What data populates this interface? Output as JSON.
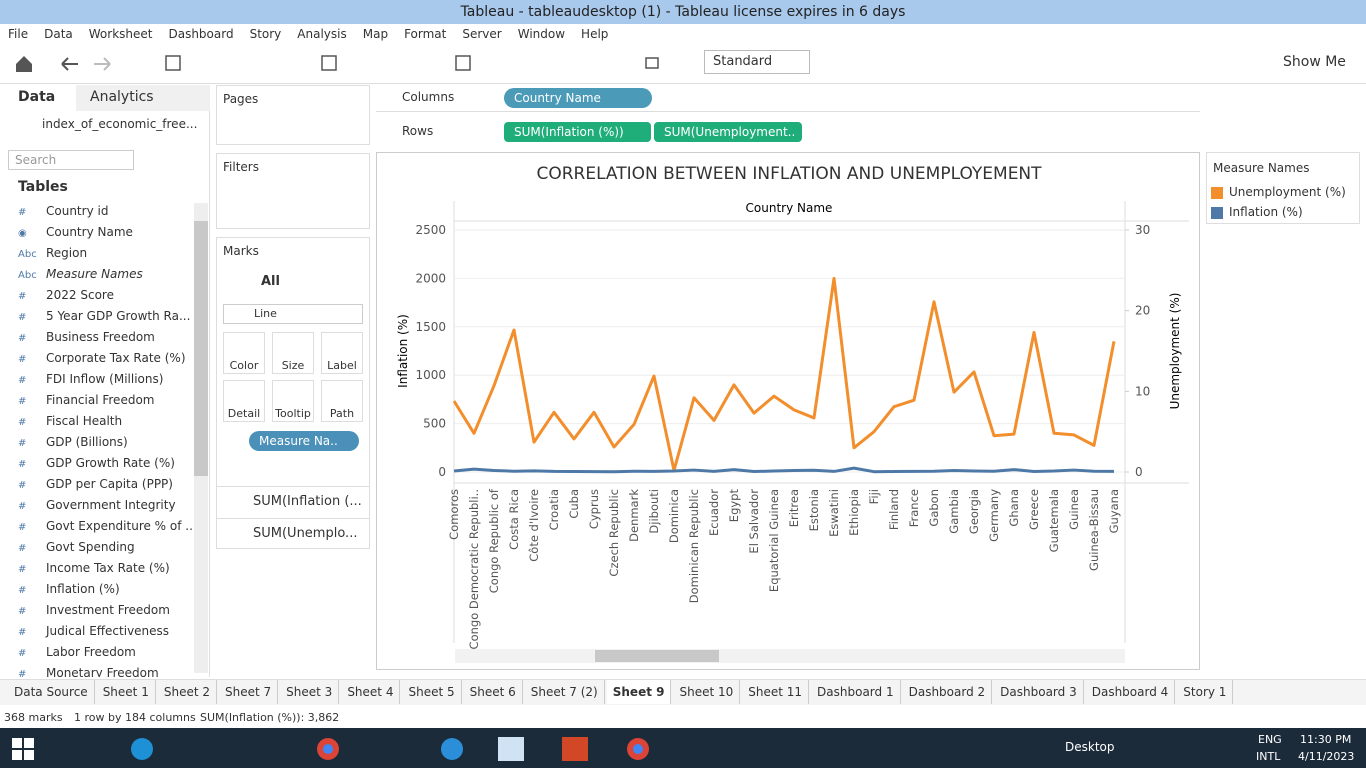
{
  "window_title": "Tableau - tableaudesktop (1) - Tableau license expires in 6 days",
  "menu": [
    "File",
    "Data",
    "Worksheet",
    "Dashboard",
    "Story",
    "Analysis",
    "Map",
    "Format",
    "Server",
    "Window",
    "Help"
  ],
  "toolbar": {
    "mark_type_fit": "Standard",
    "show_me": "Show Me"
  },
  "data_pane": {
    "tabs": [
      "Data",
      "Analytics"
    ],
    "datasource": "index_of_economic_free...",
    "search_placeholder": "Search",
    "tables_heading": "Tables",
    "fields": [
      {
        "icon": "#",
        "name": "Country id"
      },
      {
        "name": "Country Name"
      },
      {
        "icon": "Abc",
        "name": "Region"
      },
      {
        "icon": "Abc",
        "name": "Measure Names"
      },
      {
        "icon": "#",
        "name": "2022 Score"
      },
      {
        "icon": "#",
        "name": "5 Year GDP Growth Ra..."
      },
      {
        "icon": "#",
        "name": "Business Freedom"
      },
      {
        "icon": "#",
        "name": "Corporate Tax Rate (%)"
      },
      {
        "icon": "#",
        "name": "FDI Inflow (Millions)"
      },
      {
        "icon": "#",
        "name": "Financial Freedom"
      },
      {
        "icon": "#",
        "name": "Fiscal Health"
      },
      {
        "icon": "#",
        "name": "GDP (Billions)"
      },
      {
        "icon": "#",
        "name": "GDP Growth Rate (%)"
      },
      {
        "icon": "#",
        "name": "GDP per Capita (PPP)"
      },
      {
        "icon": "#",
        "name": "Government Integrity"
      },
      {
        "icon": "#",
        "name": "Govt Expenditure % of ..."
      },
      {
        "icon": "#",
        "name": "Govt Spending"
      },
      {
        "icon": "#",
        "name": "Income Tax Rate (%)"
      },
      {
        "icon": "#",
        "name": "Inflation (%)"
      },
      {
        "icon": "#",
        "name": "Investment Freedom"
      },
      {
        "icon": "#",
        "name": "Judical Effectiveness"
      },
      {
        "icon": "#",
        "name": "Labor Freedom"
      },
      {
        "icon": "#",
        "name": "Monetary Freedom"
      }
    ]
  },
  "cards": {
    "pages": "Pages",
    "filters": "Filters",
    "marks": "Marks",
    "all": "All",
    "mark_type": "Line",
    "mark_buttons": [
      "Color",
      "Size",
      "Label",
      "Detail",
      "Tooltip",
      "Path"
    ],
    "color_pill": "Measure Na..",
    "measures": [
      "SUM(Inflation (...",
      "SUM(Unemplo..."
    ]
  },
  "shelves": {
    "columns_label": "Columns",
    "columns": [
      "Country Name"
    ],
    "rows_label": "Rows",
    "rows": [
      "SUM(Inflation (%))",
      "SUM(Unemployment.."
    ]
  },
  "chart_data": {
    "type": "line",
    "title": "CORRELATION BETWEEN INFLATION AND UNEMPLOYEMENT",
    "header": "Country Name",
    "y_label": "Inflation (%)",
    "y2_label": "Unemployment (%)",
    "categories": [
      "Comoros",
      "Congo Democratic Republi..",
      "Congo Republic of",
      "Costa Rica",
      "Côte d'Ivoire",
      "Croatia",
      "Cuba",
      "Cyprus",
      "Czech Republic",
      "Denmark",
      "Djibouti",
      "Dominica",
      "Dominican Republic",
      "Ecuador",
      "Egypt",
      "El Salvador",
      "Equatorial Guinea",
      "Eritrea",
      "Estonia",
      "Eswatini",
      "Ethiopia",
      "Fiji",
      "Finland",
      "France",
      "Gabon",
      "Gambia",
      "Georgia",
      "Germany",
      "Ghana",
      "Greece",
      "Guatemala",
      "Guinea",
      "Guinea-Bissau",
      "Guyana"
    ],
    "series": [
      {
        "name": "Unemployment (%)",
        "color": "#f28e2b",
        "axis": "y2",
        "values": [
          8.8,
          4.8,
          10.7,
          17.6,
          3.7,
          7.4,
          4.1,
          7.4,
          3.1,
          5.9,
          11.9,
          0.2,
          9.2,
          6.4,
          10.8,
          7.3,
          9.4,
          7.7,
          6.7,
          24.0,
          3.0,
          5.0,
          8.1,
          8.9,
          21.1,
          9.9,
          12.4,
          4.5,
          4.7,
          17.3,
          4.8,
          4.6,
          3.3,
          16.2
        ]
      },
      {
        "name": "Inflation (%)",
        "color": "#4e79a7",
        "values": [
          10,
          30,
          15,
          8,
          12,
          6,
          5,
          4,
          3,
          8,
          6,
          10,
          20,
          7,
          25,
          5,
          10,
          15,
          18,
          6,
          40,
          3,
          5,
          6,
          8,
          15,
          10,
          8,
          25,
          5,
          10,
          20,
          8,
          6
        ]
      }
    ],
    "ylim": [
      0,
      2500
    ],
    "yticks": [
      0,
      500,
      1000,
      1500,
      2000,
      2500
    ],
    "y2lim": [
      0,
      30
    ],
    "y2ticks": [
      0,
      10,
      20,
      30
    ],
    "grid": true,
    "legend_title": "Measure Names"
  },
  "sheet_tabs": [
    "Data Source",
    "Sheet 1",
    "Sheet 2",
    "Sheet 7",
    "Sheet 3",
    "Sheet 4",
    "Sheet 5",
    "Sheet 6",
    "Sheet 7 (2)",
    "Sheet 9",
    "Sheet 10",
    "Sheet 11",
    "Dashboard 1",
    "Dashboard 2",
    "Dashboard 3",
    "Dashboard 4",
    "Story 1"
  ],
  "status": [
    "368 marks",
    "1 row by 184 columns",
    "SUM(Inflation (%)): 3,862"
  ],
  "taskbar": {
    "desktop": "Desktop",
    "lang": "ENG",
    "layout": "INTL",
    "time": "11:30 PM",
    "date": "4/11/2023"
  }
}
